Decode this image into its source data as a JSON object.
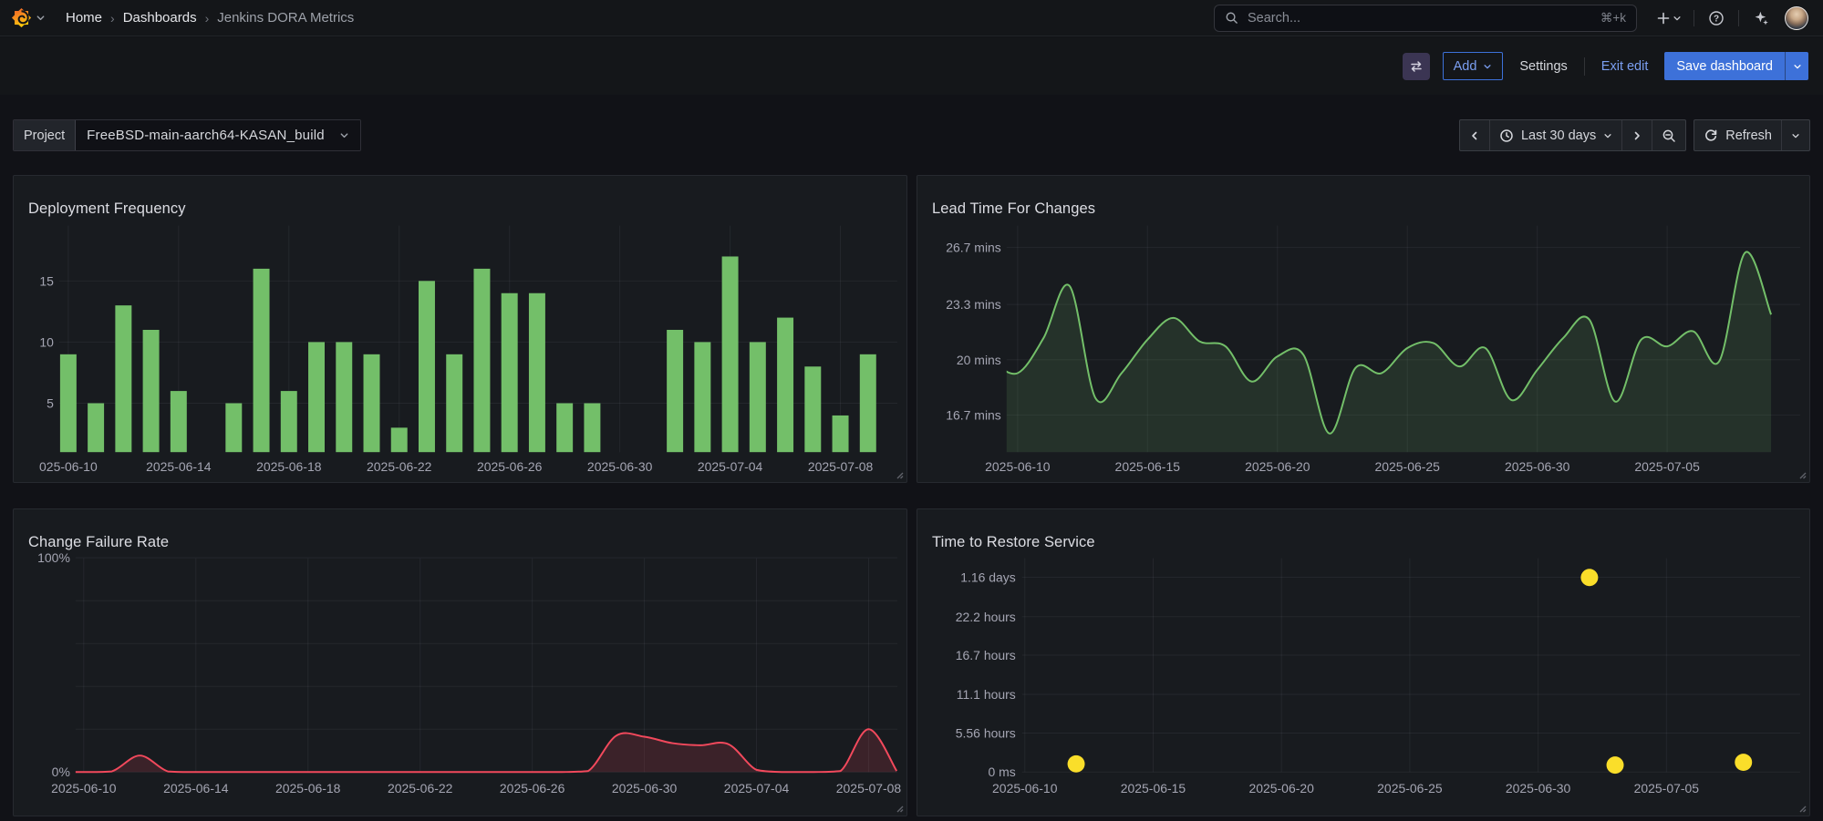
{
  "nav": {
    "home": "Home",
    "dashboards": "Dashboards",
    "current": "Jenkins DORA Metrics",
    "search_placeholder": "Search...",
    "search_shortcut": "⌘+k"
  },
  "toolbar": {
    "add": "Add",
    "settings": "Settings",
    "exit_edit": "Exit edit",
    "save": "Save dashboard"
  },
  "variables": {
    "project_label": "Project",
    "project_value": "FreeBSD-main-aarch64-KASAN_build"
  },
  "timepicker": {
    "range": "Last 30 days",
    "refresh": "Refresh"
  },
  "panels": [
    {
      "title": "Deployment Frequency"
    },
    {
      "title": "Lead Time For Changes"
    },
    {
      "title": "Change Failure Rate"
    },
    {
      "title": "Time to Restore Service"
    }
  ],
  "colors": {
    "green": "#73BF69",
    "red": "#F2495C",
    "yellow": "#FADE2A",
    "primary_blue": "#3D71D9",
    "link_blue": "#7B9FF2"
  },
  "chart_data": [
    {
      "panel": "Deployment Frequency",
      "type": "bar",
      "color": "#73BF69",
      "x": [
        "2025-06-10",
        "2025-06-11",
        "2025-06-12",
        "2025-06-13",
        "2025-06-14",
        "2025-06-15",
        "2025-06-16",
        "2025-06-17",
        "2025-06-18",
        "2025-06-19",
        "2025-06-20",
        "2025-06-21",
        "2025-06-22",
        "2025-06-23",
        "2025-06-24",
        "2025-06-25",
        "2025-06-26",
        "2025-06-27",
        "2025-06-28",
        "2025-06-29",
        "2025-06-30",
        "2025-07-01",
        "2025-07-02",
        "2025-07-03",
        "2025-07-04",
        "2025-07-05",
        "2025-07-06",
        "2025-07-07",
        "2025-07-08",
        "2025-07-09"
      ],
      "values": [
        9,
        5,
        13,
        11,
        6,
        null,
        5,
        16,
        6,
        10,
        10,
        9,
        3,
        15,
        9,
        16,
        14,
        14,
        5,
        5,
        null,
        null,
        11,
        10,
        17,
        10,
        12,
        8,
        4,
        9
      ],
      "y_ticks": [
        {
          "value": 5,
          "label": "5"
        },
        {
          "value": 10,
          "label": "10"
        },
        {
          "value": 15,
          "label": "15"
        }
      ],
      "x_ticks": [
        {
          "index": 0,
          "label": "025-06-10"
        },
        {
          "index": 4,
          "label": "2025-06-14"
        },
        {
          "index": 8,
          "label": "2025-06-18"
        },
        {
          "index": 12,
          "label": "2025-06-22"
        },
        {
          "index": 16,
          "label": "2025-06-26"
        },
        {
          "index": 20,
          "label": "2025-06-30"
        },
        {
          "index": 24,
          "label": "2025-07-04"
        },
        {
          "index": 28,
          "label": "2025-07-08"
        }
      ],
      "ylim": [
        1,
        19.5
      ],
      "grid": true,
      "legend": "none"
    },
    {
      "panel": "Lead Time For Changes",
      "type": "line",
      "unit": "mins",
      "color": "#73BF69",
      "x": [
        "2025-06-09",
        "2025-06-10",
        "2025-06-11",
        "2025-06-12",
        "2025-06-13",
        "2025-06-14",
        "2025-06-15",
        "2025-06-16",
        "2025-06-17",
        "2025-06-18",
        "2025-06-19",
        "2025-06-20",
        "2025-06-21",
        "2025-06-22",
        "2025-06-23",
        "2025-06-24",
        "2025-06-25",
        "2025-06-26",
        "2025-06-27",
        "2025-06-28",
        "2025-06-29",
        "2025-06-30",
        "2025-07-01",
        "2025-07-02",
        "2025-07-03",
        "2025-07-04",
        "2025-07-05",
        "2025-07-06",
        "2025-07-07",
        "2025-07-08",
        "2025-07-09"
      ],
      "values": [
        19.9,
        19.2,
        21.3,
        24.4,
        17.7,
        19.2,
        21.2,
        22.5,
        21.1,
        20.8,
        18.7,
        20.2,
        20.3,
        15.6,
        19.5,
        19.2,
        20.7,
        21.0,
        19.6,
        20.7,
        17.6,
        19.4,
        21.3,
        22.4,
        17.5,
        21.2,
        20.8,
        21.7,
        19.9,
        26.4,
        22.7
      ],
      "y_ticks": [
        {
          "value": 16.7,
          "label": "16.7 mins"
        },
        {
          "value": 20,
          "label": "20 mins"
        },
        {
          "value": 23.3,
          "label": "23.3 mins"
        },
        {
          "value": 26.7,
          "label": "26.7 mins"
        }
      ],
      "x_ticks": [
        {
          "index": 1,
          "label": "2025-06-10"
        },
        {
          "index": 6,
          "label": "2025-06-15"
        },
        {
          "index": 11,
          "label": "2025-06-20"
        },
        {
          "index": 16,
          "label": "2025-06-25"
        },
        {
          "index": 21,
          "label": "2025-06-30"
        },
        {
          "index": 26,
          "label": "2025-07-05"
        }
      ],
      "ylim": [
        14.5,
        28
      ],
      "grid": true,
      "legend": "none"
    },
    {
      "panel": "Change Failure Rate",
      "type": "line",
      "unit": "percent",
      "color": "#F2495C",
      "x": [
        "2025-06-09",
        "2025-06-10",
        "2025-06-11",
        "2025-06-12",
        "2025-06-13",
        "2025-06-14",
        "2025-06-15",
        "2025-06-16",
        "2025-06-17",
        "2025-06-18",
        "2025-06-19",
        "2025-06-20",
        "2025-06-21",
        "2025-06-22",
        "2025-06-23",
        "2025-06-24",
        "2025-06-25",
        "2025-06-26",
        "2025-06-27",
        "2025-06-28",
        "2025-06-29",
        "2025-06-30",
        "2025-07-01",
        "2025-07-02",
        "2025-07-03",
        "2025-07-04",
        "2025-07-05",
        "2025-07-06",
        "2025-07-07",
        "2025-07-08",
        "2025-07-09"
      ],
      "values": [
        0,
        0,
        0.3,
        7.7,
        0.3,
        0,
        0,
        0,
        0,
        0,
        0,
        0,
        0,
        0,
        0,
        0,
        0,
        0,
        0,
        0.5,
        17,
        16.5,
        13.5,
        12.5,
        13,
        1,
        0,
        0,
        0.5,
        20,
        0.5
      ],
      "y_ticks": [
        {
          "value": 0,
          "label": "0%"
        },
        {
          "value": 20,
          "label": ""
        },
        {
          "value": 40,
          "label": ""
        },
        {
          "value": 60,
          "label": ""
        },
        {
          "value": 80,
          "label": ""
        },
        {
          "value": 100,
          "label": "100%"
        }
      ],
      "x_ticks": [
        {
          "index": 1,
          "label": "2025-06-10"
        },
        {
          "index": 5,
          "label": "2025-06-14"
        },
        {
          "index": 9,
          "label": "2025-06-18"
        },
        {
          "index": 13,
          "label": "2025-06-22"
        },
        {
          "index": 17,
          "label": "2025-06-26"
        },
        {
          "index": 21,
          "label": "2025-06-30"
        },
        {
          "index": 25,
          "label": "2025-07-04"
        },
        {
          "index": 29,
          "label": "2025-07-08"
        }
      ],
      "ylim": [
        0,
        100
      ],
      "grid": true,
      "legend": "none"
    },
    {
      "panel": "Time to Restore Service",
      "type": "scatter",
      "color": "#FADE2A",
      "x_range": [
        "2025-06-09",
        "2025-07-09"
      ],
      "points": [
        {
          "date": "2025-06-12",
          "hours": 1.16
        },
        {
          "date": "2025-07-02",
          "hours": 27.8
        },
        {
          "date": "2025-07-03",
          "hours": 1.0
        },
        {
          "date": "2025-07-08",
          "hours": 1.4
        }
      ],
      "y_ticks": [
        {
          "value": 0,
          "label": "0 ms"
        },
        {
          "value": 5.56,
          "label": "5.56 hours"
        },
        {
          "value": 11.1,
          "label": "11.1 hours"
        },
        {
          "value": 16.7,
          "label": "16.7 hours"
        },
        {
          "value": 22.2,
          "label": "22.2 hours"
        },
        {
          "value": 27.84,
          "label": "1.16 days"
        }
      ],
      "x_ticks": [
        {
          "date": "2025-06-10",
          "label": "2025-06-10"
        },
        {
          "date": "2025-06-15",
          "label": "2025-06-15"
        },
        {
          "date": "2025-06-20",
          "label": "2025-06-20"
        },
        {
          "date": "2025-06-25",
          "label": "2025-06-25"
        },
        {
          "date": "2025-06-30",
          "label": "2025-06-30"
        },
        {
          "date": "2025-07-05",
          "label": "2025-07-05"
        }
      ],
      "ylim_hours": [
        0,
        30.5
      ],
      "grid": true,
      "legend": "none"
    }
  ]
}
